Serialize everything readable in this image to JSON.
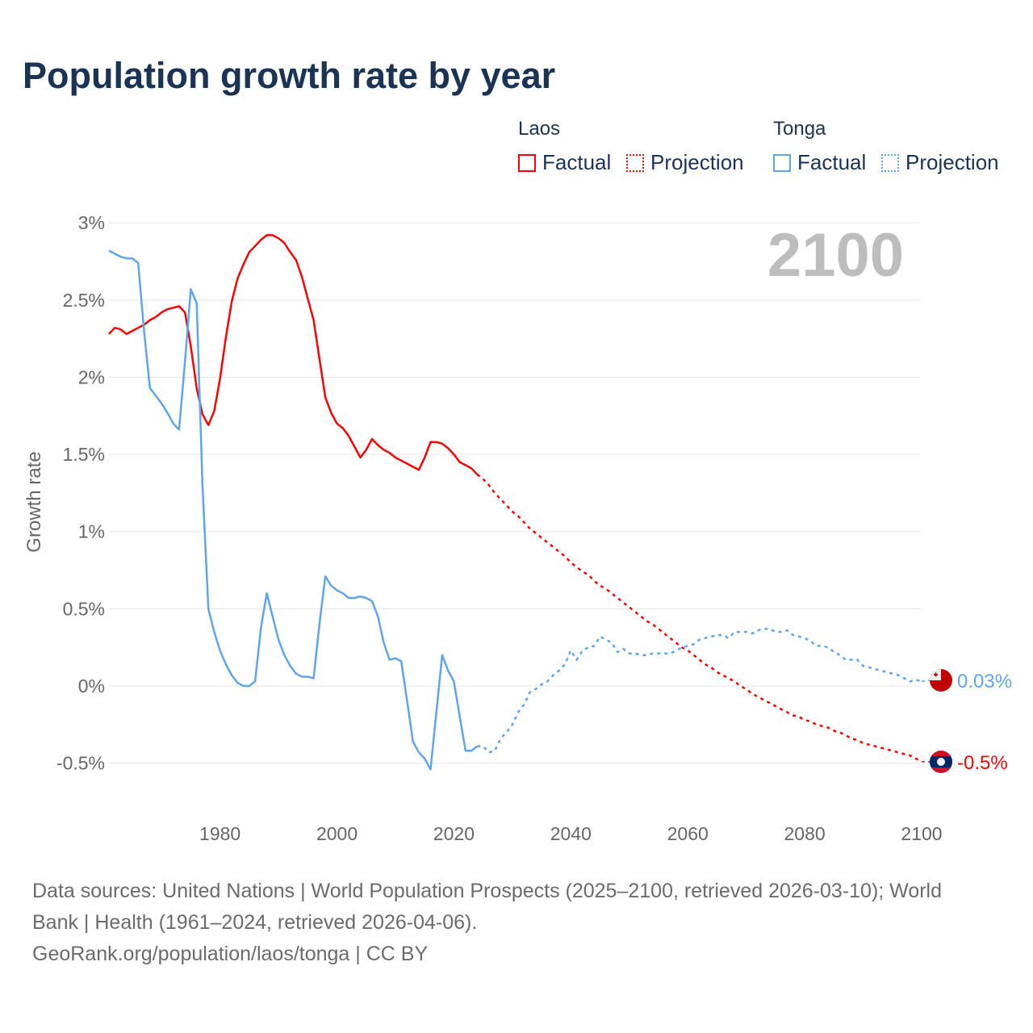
{
  "chart_data": {
    "type": "line",
    "title": "Population growth rate by year",
    "ylabel": "Growth rate",
    "xlabel": "",
    "xlim": [
      1961,
      2100
    ],
    "ylim": [
      -0.7,
      3.0
    ],
    "yticks": [
      -0.5,
      0,
      0.5,
      1,
      1.5,
      2,
      2.5,
      3
    ],
    "ytick_labels": [
      "-0.5%",
      "0%",
      "0.5%",
      "1%",
      "1.5%",
      "2%",
      "2.5%",
      "3%"
    ],
    "xticks": [
      1980,
      2000,
      2020,
      2040,
      2060,
      2080,
      2100
    ],
    "xtick_labels": [
      "1980",
      "2000",
      "2020",
      "2040",
      "2060",
      "2080",
      "2100"
    ],
    "grid": true,
    "current_year": "2100",
    "legend": {
      "placement": "top-right",
      "groups": [
        {
          "country": "Laos",
          "color": "#ff0000",
          "factual": "Factual",
          "projection": "Projection"
        },
        {
          "country": "Tonga",
          "color": "#5ea5ec",
          "factual": "Factual",
          "projection": "Projection"
        }
      ]
    },
    "series": [
      {
        "name": "Laos",
        "color": "#ff0000",
        "end_label": "-0.5%",
        "flag": "laos-flag",
        "factual": {
          "start": 1961,
          "values": [
            2.28,
            2.32,
            2.31,
            2.28,
            2.3,
            2.32,
            2.34,
            2.37,
            2.39,
            2.42,
            2.44,
            2.45,
            2.46,
            2.42,
            2.2,
            1.93,
            1.76,
            1.69,
            1.78,
            1.99,
            2.26,
            2.49,
            2.64,
            2.73,
            2.81,
            2.85,
            2.89,
            2.92,
            2.92,
            2.9,
            2.87,
            2.81,
            2.76,
            2.65,
            2.51,
            2.37,
            2.12,
            1.87,
            1.77,
            1.7,
            1.67,
            1.62,
            1.55,
            1.48,
            1.53,
            1.6,
            1.56,
            1.53,
            1.51,
            1.48,
            1.46,
            1.44,
            1.42,
            1.4,
            1.48,
            1.58,
            1.58,
            1.57,
            1.54,
            1.5,
            1.45,
            1.43,
            1.41,
            1.37
          ]
        },
        "projection": {
          "start": 2024,
          "values": [
            1.37,
            1.34,
            1.3,
            1.25,
            1.21,
            1.17,
            1.13,
            1.1,
            1.06,
            1.02,
            0.99,
            0.96,
            0.93,
            0.9,
            0.87,
            0.84,
            0.8,
            0.77,
            0.74,
            0.72,
            0.68,
            0.65,
            0.63,
            0.6,
            0.57,
            0.54,
            0.51,
            0.48,
            0.45,
            0.42,
            0.4,
            0.37,
            0.34,
            0.31,
            0.28,
            0.25,
            0.23,
            0.2,
            0.17,
            0.14,
            0.12,
            0.09,
            0.07,
            0.05,
            0.03,
            0.0,
            -0.02,
            -0.05,
            -0.07,
            -0.09,
            -0.11,
            -0.13,
            -0.15,
            -0.17,
            -0.19,
            -0.2,
            -0.22,
            -0.23,
            -0.25,
            -0.26,
            -0.27,
            -0.29,
            -0.3,
            -0.32,
            -0.34,
            -0.35,
            -0.37,
            -0.38,
            -0.39,
            -0.4,
            -0.41,
            -0.42,
            -0.43,
            -0.44,
            -0.45,
            -0.47,
            -0.49
          ]
        }
      },
      {
        "name": "Tonga",
        "color": "#5ea5ec",
        "end_label": "0.03%",
        "flag": "tonga-flag",
        "factual": {
          "start": 1961,
          "values": [
            2.82,
            2.8,
            2.78,
            2.77,
            2.77,
            2.74,
            2.3,
            1.93,
            1.88,
            1.83,
            1.77,
            1.7,
            1.66,
            2.1,
            2.57,
            2.48,
            1.3,
            0.5,
            0.35,
            0.23,
            0.14,
            0.07,
            0.02,
            0.0,
            0.0,
            0.03,
            0.38,
            0.6,
            0.45,
            0.3,
            0.2,
            0.13,
            0.08,
            0.06,
            0.06,
            0.05,
            0.4,
            0.71,
            0.65,
            0.62,
            0.6,
            0.57,
            0.57,
            0.58,
            0.57,
            0.55,
            0.45,
            0.28,
            0.17,
            0.18,
            0.16,
            -0.1,
            -0.36,
            -0.43,
            -0.47,
            -0.54,
            -0.17,
            0.2,
            0.1,
            0.03,
            -0.2,
            -0.42,
            -0.42,
            -0.39
          ]
        },
        "projection": {
          "start": 2024,
          "values": [
            -0.39,
            -0.39,
            -0.43,
            -0.42,
            -0.34,
            -0.3,
            -0.25,
            -0.17,
            -0.12,
            -0.04,
            -0.02,
            0.01,
            0.03,
            0.07,
            0.1,
            0.14,
            0.23,
            0.17,
            0.23,
            0.25,
            0.26,
            0.32,
            0.3,
            0.28,
            0.22,
            0.24,
            0.21,
            0.21,
            0.2,
            0.2,
            0.21,
            0.21,
            0.21,
            0.21,
            0.23,
            0.25,
            0.26,
            0.27,
            0.3,
            0.31,
            0.32,
            0.33,
            0.33,
            0.31,
            0.35,
            0.35,
            0.35,
            0.34,
            0.36,
            0.37,
            0.37,
            0.35,
            0.35,
            0.36,
            0.33,
            0.32,
            0.31,
            0.29,
            0.26,
            0.26,
            0.25,
            0.22,
            0.2,
            0.17,
            0.17,
            0.17,
            0.13,
            0.12,
            0.11,
            0.1,
            0.09,
            0.08,
            0.07,
            0.05,
            0.03,
            0.04,
            0.03
          ]
        }
      }
    ]
  },
  "footer": {
    "line1": "Data sources: United Nations | World Population Prospects (2025–2100, retrieved 2026-03-10); World",
    "line2": "Bank | Health (1961–2024, retrieved 2026-04-06).",
    "line3": "GeoRank.org/population/laos/tonga | CC BY"
  }
}
